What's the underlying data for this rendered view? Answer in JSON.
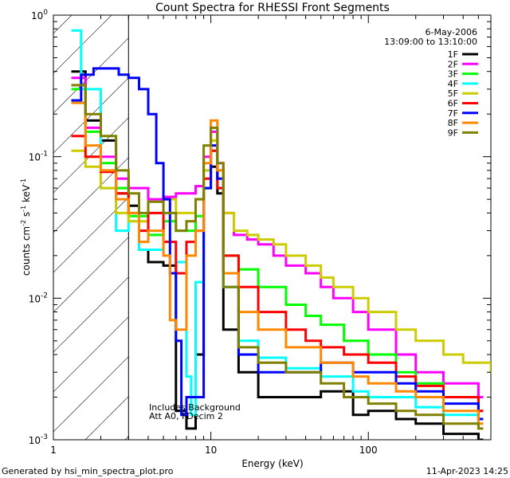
{
  "chart_data": {
    "type": "line",
    "title": "Count Spectra for RHESSI Front Segments",
    "date": "6-May-2006",
    "time_range": "13:09:00 to 13:10:00",
    "xlabel": "Energy (keV)",
    "ylabel_parts": {
      "a": "counts cm",
      "b": "-2",
      "c": " s",
      "d": "-1",
      "e": " keV",
      "f": "-1"
    },
    "xscale": "log",
    "yscale": "log",
    "xlim": [
      1,
      600
    ],
    "ylim": [
      0.001,
      1
    ],
    "x_ticks": [
      {
        "value": 1,
        "label": "1"
      },
      {
        "value": 10,
        "label": "10"
      },
      {
        "value": 100,
        "label": "100"
      }
    ],
    "y_ticks": [
      {
        "value": 1,
        "base": "10",
        "exp": "0"
      },
      {
        "value": 0.1,
        "base": "10",
        "exp": "-1"
      },
      {
        "value": 0.01,
        "base": "10",
        "exp": "-2"
      },
      {
        "value": 0.001,
        "base": "10",
        "exp": "-3"
      }
    ],
    "shaded_region": {
      "x_from": 1,
      "x_to": 3,
      "pattern": "diagonal-hatch"
    },
    "annotations": [
      "Includes Background",
      "Att A0, FDecim 2"
    ],
    "footer_left": "Generated by hsi_min_spectra_plot.pro",
    "footer_right": "11-Apr-2023 14:25",
    "legend_position": "top-right",
    "series": [
      {
        "name": "1F",
        "color": "#000000",
        "points": [
          [
            1.3,
            0.4
          ],
          [
            1.6,
            0.18
          ],
          [
            2.0,
            0.13
          ],
          [
            2.5,
            0.055
          ],
          [
            3,
            0.045
          ],
          [
            3.5,
            0.022
          ],
          [
            4,
            0.018
          ],
          [
            5,
            0.017
          ],
          [
            6,
            0.0016
          ],
          [
            7,
            0.0012
          ],
          [
            8,
            0.004
          ],
          [
            9,
            0.06
          ],
          [
            10,
            0.085
          ],
          [
            11,
            0.055
          ],
          [
            12,
            0.006
          ],
          [
            15,
            0.003
          ],
          [
            20,
            0.002
          ],
          [
            30,
            0.002
          ],
          [
            50,
            0.0022
          ],
          [
            80,
            0.0015
          ],
          [
            100,
            0.0016
          ],
          [
            150,
            0.0014
          ],
          [
            200,
            0.0013
          ],
          [
            300,
            0.0011
          ],
          [
            500,
            0.001
          ]
        ]
      },
      {
        "name": "2F",
        "color": "#ff00ff",
        "points": [
          [
            1.3,
            0.36
          ],
          [
            1.6,
            0.16
          ],
          [
            2.0,
            0.1
          ],
          [
            2.5,
            0.07
          ],
          [
            3,
            0.06
          ],
          [
            4,
            0.05
          ],
          [
            5,
            0.052
          ],
          [
            6,
            0.055
          ],
          [
            7,
            0.055
          ],
          [
            8,
            0.062
          ],
          [
            9,
            0.1
          ],
          [
            10,
            0.15
          ],
          [
            11,
            0.09
          ],
          [
            12,
            0.04
          ],
          [
            14,
            0.028
          ],
          [
            17,
            0.026
          ],
          [
            20,
            0.024
          ],
          [
            25,
            0.02
          ],
          [
            30,
            0.017
          ],
          [
            40,
            0.015
          ],
          [
            50,
            0.012
          ],
          [
            60,
            0.01
          ],
          [
            80,
            0.008
          ],
          [
            100,
            0.006
          ],
          [
            150,
            0.004
          ],
          [
            200,
            0.003
          ],
          [
            300,
            0.0025
          ],
          [
            500,
            0.002
          ]
        ]
      },
      {
        "name": "3F",
        "color": "#00ff00",
        "points": [
          [
            1.3,
            0.3
          ],
          [
            1.6,
            0.15
          ],
          [
            2.0,
            0.09
          ],
          [
            2.5,
            0.06
          ],
          [
            3,
            0.038
          ],
          [
            4,
            0.028
          ],
          [
            5,
            0.035
          ],
          [
            6,
            0.03
          ],
          [
            7,
            0.03
          ],
          [
            8,
            0.038
          ],
          [
            9,
            0.08
          ],
          [
            10,
            0.13
          ],
          [
            11,
            0.08
          ],
          [
            12,
            0.02
          ],
          [
            15,
            0.016
          ],
          [
            20,
            0.012
          ],
          [
            30,
            0.009
          ],
          [
            40,
            0.0075
          ],
          [
            50,
            0.0065
          ],
          [
            70,
            0.005
          ],
          [
            100,
            0.004
          ],
          [
            150,
            0.003
          ],
          [
            200,
            0.0025
          ],
          [
            300,
            0.002
          ],
          [
            500,
            0.0016
          ]
        ]
      },
      {
        "name": "4F",
        "color": "#00ffff",
        "points": [
          [
            1.3,
            0.78
          ],
          [
            1.5,
            0.3
          ],
          [
            2.0,
            0.06
          ],
          [
            2.5,
            0.03
          ],
          [
            3,
            0.035
          ],
          [
            3.5,
            0.022
          ],
          [
            4,
            0.022
          ],
          [
            5,
            0.025
          ],
          [
            6,
            0.018
          ],
          [
            7,
            0.0028
          ],
          [
            7.5,
            0.0015
          ],
          [
            8,
            0.013
          ],
          [
            9,
            0.06
          ],
          [
            10,
            0.11
          ],
          [
            11,
            0.06
          ],
          [
            12,
            0.012
          ],
          [
            15,
            0.005
          ],
          [
            20,
            0.0038
          ],
          [
            30,
            0.0032
          ],
          [
            50,
            0.0028
          ],
          [
            80,
            0.0022
          ],
          [
            100,
            0.002
          ],
          [
            150,
            0.002
          ],
          [
            200,
            0.0017
          ],
          [
            300,
            0.0015
          ],
          [
            500,
            0.0013
          ]
        ]
      },
      {
        "name": "5F",
        "color": "#cccc00",
        "points": [
          [
            1.3,
            0.11
          ],
          [
            1.6,
            0.085
          ],
          [
            2.0,
            0.06
          ],
          [
            2.5,
            0.04
          ],
          [
            3,
            0.035
          ],
          [
            4,
            0.04
          ],
          [
            5,
            0.05
          ],
          [
            6,
            0.04
          ],
          [
            7,
            0.04
          ],
          [
            8,
            0.05
          ],
          [
            9,
            0.08
          ],
          [
            10,
            0.13
          ],
          [
            11,
            0.08
          ],
          [
            12,
            0.04
          ],
          [
            14,
            0.03
          ],
          [
            17,
            0.028
          ],
          [
            20,
            0.026
          ],
          [
            25,
            0.024
          ],
          [
            30,
            0.02
          ],
          [
            40,
            0.017
          ],
          [
            50,
            0.014
          ],
          [
            60,
            0.012
          ],
          [
            80,
            0.01
          ],
          [
            100,
            0.008
          ],
          [
            150,
            0.006
          ],
          [
            200,
            0.005
          ],
          [
            300,
            0.004
          ],
          [
            400,
            0.0035
          ],
          [
            600,
            0.003
          ]
        ]
      },
      {
        "name": "6F",
        "color": "#ff0000",
        "points": [
          [
            1.3,
            0.14
          ],
          [
            1.6,
            0.1
          ],
          [
            2.0,
            0.078
          ],
          [
            2.5,
            0.055
          ],
          [
            3,
            0.04
          ],
          [
            3.5,
            0.03
          ],
          [
            4,
            0.04
          ],
          [
            5,
            0.025
          ],
          [
            6,
            0.015
          ],
          [
            7,
            0.025
          ],
          [
            8,
            0.03
          ],
          [
            9,
            0.07
          ],
          [
            10,
            0.11
          ],
          [
            11,
            0.06
          ],
          [
            12,
            0.02
          ],
          [
            15,
            0.012
          ],
          [
            20,
            0.008
          ],
          [
            30,
            0.006
          ],
          [
            40,
            0.005
          ],
          [
            50,
            0.0045
          ],
          [
            70,
            0.004
          ],
          [
            100,
            0.0035
          ],
          [
            150,
            0.0028
          ],
          [
            200,
            0.0024
          ],
          [
            300,
            0.002
          ],
          [
            500,
            0.0016
          ]
        ]
      },
      {
        "name": "7F",
        "color": "#0000ff",
        "points": [
          [
            1.3,
            0.25
          ],
          [
            1.5,
            0.38
          ],
          [
            1.8,
            0.42
          ],
          [
            2.2,
            0.42
          ],
          [
            2.6,
            0.38
          ],
          [
            3,
            0.36
          ],
          [
            3.5,
            0.3
          ],
          [
            4,
            0.2
          ],
          [
            4.5,
            0.09
          ],
          [
            5,
            0.05
          ],
          [
            5.5,
            0.015
          ],
          [
            6,
            0.005
          ],
          [
            6.5,
            0.0015
          ],
          [
            7,
            0.002
          ],
          [
            8,
            0.002
          ],
          [
            9,
            0.06
          ],
          [
            10,
            0.12
          ],
          [
            11,
            0.07
          ],
          [
            12,
            0.015
          ],
          [
            15,
            0.004
          ],
          [
            20,
            0.003
          ],
          [
            30,
            0.003
          ],
          [
            50,
            0.0035
          ],
          [
            80,
            0.003
          ],
          [
            100,
            0.003
          ],
          [
            150,
            0.0025
          ],
          [
            200,
            0.0022
          ],
          [
            300,
            0.0018
          ],
          [
            500,
            0.0014
          ]
        ]
      },
      {
        "name": "8F",
        "color": "#ff8800",
        "points": [
          [
            1.3,
            0.24
          ],
          [
            1.6,
            0.12
          ],
          [
            2.0,
            0.08
          ],
          [
            2.5,
            0.05
          ],
          [
            3,
            0.04
          ],
          [
            3.5,
            0.025
          ],
          [
            4,
            0.03
          ],
          [
            5,
            0.02
          ],
          [
            5.5,
            0.007
          ],
          [
            6,
            0.006
          ],
          [
            7,
            0.02
          ],
          [
            8,
            0.03
          ],
          [
            9,
            0.09
          ],
          [
            10,
            0.18
          ],
          [
            11,
            0.08
          ],
          [
            12,
            0.015
          ],
          [
            15,
            0.008
          ],
          [
            20,
            0.006
          ],
          [
            30,
            0.0045
          ],
          [
            50,
            0.0035
          ],
          [
            80,
            0.0028
          ],
          [
            100,
            0.0025
          ],
          [
            150,
            0.0022
          ],
          [
            200,
            0.002
          ],
          [
            300,
            0.0016
          ],
          [
            500,
            0.0013
          ]
        ]
      },
      {
        "name": "9F",
        "color": "#808000",
        "points": [
          [
            1.3,
            0.32
          ],
          [
            1.6,
            0.2
          ],
          [
            2.0,
            0.14
          ],
          [
            2.5,
            0.08
          ],
          [
            3,
            0.055
          ],
          [
            3.5,
            0.04
          ],
          [
            4,
            0.048
          ],
          [
            5,
            0.04
          ],
          [
            6,
            0.03
          ],
          [
            7,
            0.035
          ],
          [
            8,
            0.05
          ],
          [
            9,
            0.12
          ],
          [
            10,
            0.16
          ],
          [
            11,
            0.09
          ],
          [
            12,
            0.012
          ],
          [
            15,
            0.0045
          ],
          [
            20,
            0.0035
          ],
          [
            30,
            0.003
          ],
          [
            50,
            0.0025
          ],
          [
            70,
            0.002
          ],
          [
            100,
            0.0018
          ],
          [
            150,
            0.0016
          ],
          [
            200,
            0.0015
          ],
          [
            300,
            0.0013
          ],
          [
            500,
            0.0012
          ]
        ]
      }
    ]
  }
}
